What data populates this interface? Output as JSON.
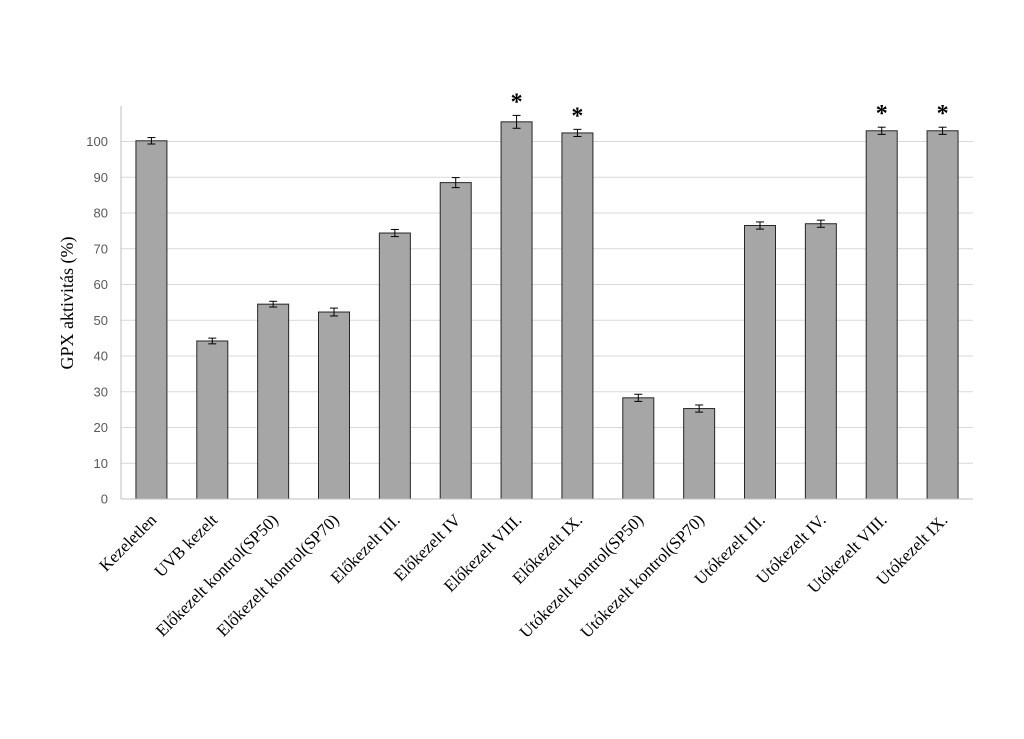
{
  "chart_data": {
    "type": "bar",
    "ylabel": "GPX aktivitás (%)",
    "ylim": [
      0,
      110
    ],
    "yticks": [
      "0",
      "10",
      "20",
      "30",
      "40",
      "50",
      "60",
      "70",
      "80",
      "90",
      "100"
    ],
    "grid": true,
    "categories": [
      "Kezeletlen",
      "UVB kezelt",
      "Előkezelt kontrol(SP50)",
      "Előkezelt kontrol(SP70)",
      "Előkezelt III.",
      "Előkezelt IV",
      "Előkezelt VIII.",
      "Előkezelt IX.",
      "Utókezelt kontrol(SP50)",
      "Utókezelt kontrol(SP70)",
      "Utókezelt III.",
      "Utókezelt IV.",
      "Utókezelt VIII.",
      "Utókezelt IX."
    ],
    "values": [
      100.2,
      44.2,
      54.5,
      52.3,
      74.4,
      88.5,
      105.5,
      102.4,
      28.3,
      25.3,
      76.5,
      77.0,
      103.0,
      103.0
    ],
    "errors": [
      0.9,
      0.8,
      0.8,
      1.1,
      1.0,
      1.4,
      1.8,
      1.0,
      1.0,
      1.0,
      1.0,
      1.0,
      1.0,
      1.0
    ],
    "significance": [
      "",
      "",
      "",
      "",
      "",
      "",
      "*",
      "*",
      "",
      "",
      "",
      "",
      "*",
      "*"
    ],
    "bar_color": "#a6a6a6",
    "bar_edge_color": "#262626",
    "grid_color": "#d9d9d9"
  }
}
